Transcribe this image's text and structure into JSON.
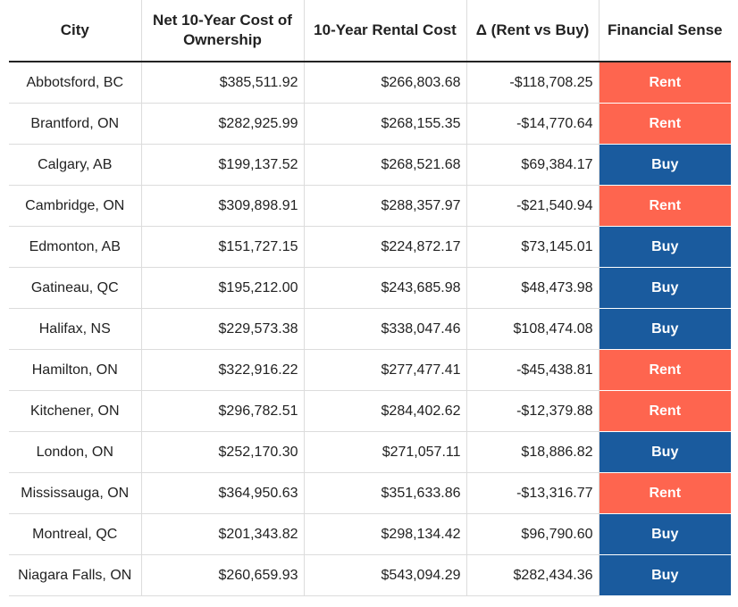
{
  "colors": {
    "rent": "#fe654f",
    "buy": "#1a5b9e"
  },
  "headers": {
    "city": "City",
    "ownership": "Net 10-Year Cost of Ownership",
    "rental": "10-Year Rental Cost",
    "delta": "Δ (Rent vs Buy)",
    "sense": "Financial Sense"
  },
  "rows": [
    {
      "city": "Abbotsford, BC",
      "ownership": "$385,511.92",
      "rental": "$266,803.68",
      "delta": "-$118,708.25",
      "sense": "Rent"
    },
    {
      "city": "Brantford, ON",
      "ownership": "$282,925.99",
      "rental": "$268,155.35",
      "delta": "-$14,770.64",
      "sense": "Rent"
    },
    {
      "city": "Calgary, AB",
      "ownership": "$199,137.52",
      "rental": "$268,521.68",
      "delta": "$69,384.17",
      "sense": "Buy"
    },
    {
      "city": "Cambridge, ON",
      "ownership": "$309,898.91",
      "rental": "$288,357.97",
      "delta": "-$21,540.94",
      "sense": "Rent"
    },
    {
      "city": "Edmonton, AB",
      "ownership": "$151,727.15",
      "rental": "$224,872.17",
      "delta": "$73,145.01",
      "sense": "Buy"
    },
    {
      "city": "Gatineau, QC",
      "ownership": "$195,212.00",
      "rental": "$243,685.98",
      "delta": "$48,473.98",
      "sense": "Buy"
    },
    {
      "city": "Halifax, NS",
      "ownership": "$229,573.38",
      "rental": "$338,047.46",
      "delta": "$108,474.08",
      "sense": "Buy"
    },
    {
      "city": "Hamilton, ON",
      "ownership": "$322,916.22",
      "rental": "$277,477.41",
      "delta": "-$45,438.81",
      "sense": "Rent"
    },
    {
      "city": "Kitchener, ON",
      "ownership": "$296,782.51",
      "rental": "$284,402.62",
      "delta": "-$12,379.88",
      "sense": "Rent"
    },
    {
      "city": "London, ON",
      "ownership": "$252,170.30",
      "rental": "$271,057.11",
      "delta": "$18,886.82",
      "sense": "Buy"
    },
    {
      "city": "Mississauga, ON",
      "ownership": "$364,950.63",
      "rental": "$351,633.86",
      "delta": "-$13,316.77",
      "sense": "Rent"
    },
    {
      "city": "Montreal, QC",
      "ownership": "$201,343.82",
      "rental": "$298,134.42",
      "delta": "$96,790.60",
      "sense": "Buy"
    },
    {
      "city": "Niagara Falls, ON",
      "ownership": "$260,659.93",
      "rental": "$543,094.29",
      "delta": "$282,434.36",
      "sense": "Buy"
    }
  ]
}
